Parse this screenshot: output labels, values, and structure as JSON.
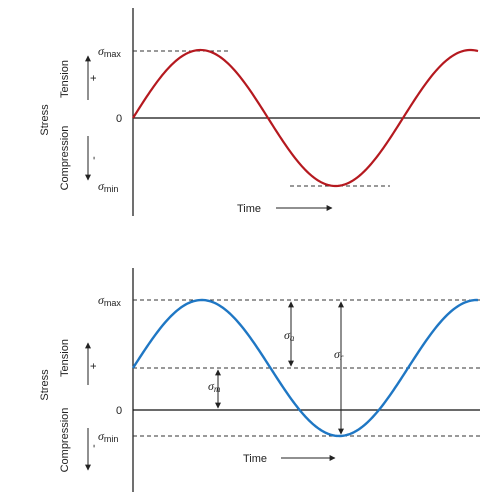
{
  "colors": {
    "wave_top": "#b5191f",
    "wave_bottom": "#1f77c4",
    "ink": "#222222"
  },
  "top": {
    "sigma_max": {
      "sym": "σ",
      "sub": "max"
    },
    "sigma_min": {
      "sym": "σ",
      "sub": "min"
    },
    "zero": "0",
    "time": "Time",
    "ylabel_stress": "Stress",
    "ylabel_tension": "Tension",
    "ylabel_compression": "Compression",
    "plus": "+",
    "minus": "-"
  },
  "bottom": {
    "sigma_max": {
      "sym": "σ",
      "sub": "max"
    },
    "sigma_min": {
      "sym": "σ",
      "sub": "min"
    },
    "zero": "0",
    "time": "Time",
    "ylabel_stress": "Stress",
    "ylabel_tension": "Tension",
    "ylabel_compression": "Compression",
    "plus": "+",
    "minus": "-",
    "sigma_a": {
      "sym": "σ",
      "sub": "a"
    },
    "sigma_r": {
      "sym": "σ",
      "sub": "r"
    },
    "sigma_m": {
      "sym": "σ",
      "sub": "m"
    }
  }
}
